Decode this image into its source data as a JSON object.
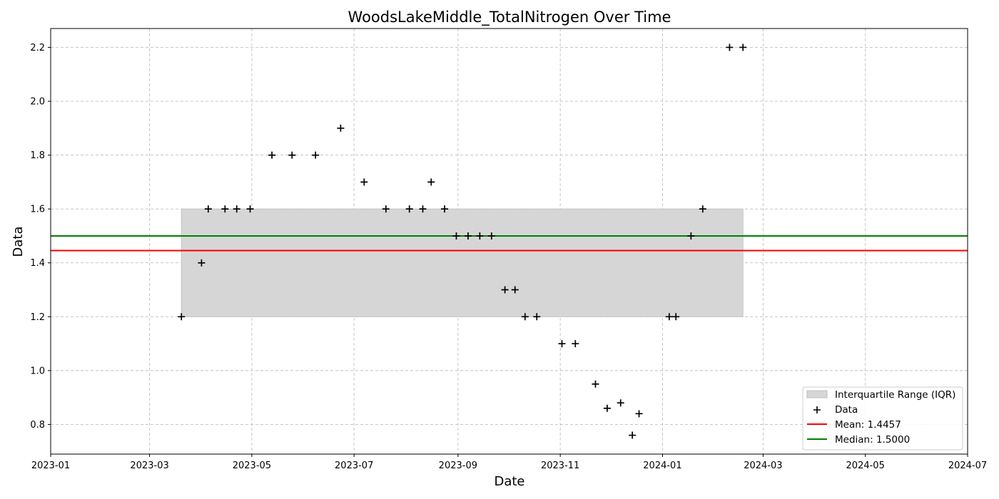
{
  "chart_data": {
    "type": "scatter",
    "title": "WoodsLakeMiddle_TotalNitrogen Over Time",
    "xlabel": "Date",
    "ylabel": "Data",
    "x_axis": "date",
    "xlim": [
      "2023-01-01",
      "2024-07-01"
    ],
    "ylim": [
      0.69,
      2.27
    ],
    "x_ticks": [
      "2023-01",
      "2023-03",
      "2023-05",
      "2023-07",
      "2023-09",
      "2023-11",
      "2024-01",
      "2024-03",
      "2024-05",
      "2024-07"
    ],
    "y_ticks": [
      0.8,
      1.0,
      1.2,
      1.4,
      1.6,
      1.8,
      2.0,
      2.2
    ],
    "grid": true,
    "legend_position": "bottom-right",
    "iqr": {
      "label": "Interquartile Range (IQR)",
      "q1": 1.2,
      "q3": 1.6,
      "x_start": "2023-03-20",
      "x_end": "2024-02-18",
      "color": "#d6d6d6"
    },
    "mean": {
      "label": "Mean: 1.4457",
      "value": 1.4457,
      "color": "#ff0000"
    },
    "median": {
      "label": "Median: 1.5000",
      "value": 1.5,
      "color": "#008000"
    },
    "series": [
      {
        "name": "Data",
        "marker": "plus",
        "color": "#000000",
        "points": [
          {
            "x": "2023-03-20",
            "y": 1.2
          },
          {
            "x": "2023-04-01",
            "y": 1.4
          },
          {
            "x": "2023-04-05",
            "y": 1.6
          },
          {
            "x": "2023-04-15",
            "y": 1.6
          },
          {
            "x": "2023-04-22",
            "y": 1.6
          },
          {
            "x": "2023-04-30",
            "y": 1.6
          },
          {
            "x": "2023-05-13",
            "y": 1.8
          },
          {
            "x": "2023-05-25",
            "y": 1.8
          },
          {
            "x": "2023-06-08",
            "y": 1.8
          },
          {
            "x": "2023-06-23",
            "y": 1.9
          },
          {
            "x": "2023-07-07",
            "y": 1.7
          },
          {
            "x": "2023-07-20",
            "y": 1.6
          },
          {
            "x": "2023-08-03",
            "y": 1.6
          },
          {
            "x": "2023-08-11",
            "y": 1.6
          },
          {
            "x": "2023-08-16",
            "y": 1.7
          },
          {
            "x": "2023-08-24",
            "y": 1.6
          },
          {
            "x": "2023-08-31",
            "y": 1.5
          },
          {
            "x": "2023-09-07",
            "y": 1.5
          },
          {
            "x": "2023-09-14",
            "y": 1.5
          },
          {
            "x": "2023-09-21",
            "y": 1.5
          },
          {
            "x": "2023-09-29",
            "y": 1.3
          },
          {
            "x": "2023-10-05",
            "y": 1.3
          },
          {
            "x": "2023-10-11",
            "y": 1.2
          },
          {
            "x": "2023-10-18",
            "y": 1.2
          },
          {
            "x": "2023-11-02",
            "y": 1.1
          },
          {
            "x": "2023-11-10",
            "y": 1.1
          },
          {
            "x": "2023-11-22",
            "y": 0.95
          },
          {
            "x": "2023-11-29",
            "y": 0.86
          },
          {
            "x": "2023-12-07",
            "y": 0.88
          },
          {
            "x": "2023-12-14",
            "y": 0.76
          },
          {
            "x": "2023-12-18",
            "y": 0.84
          },
          {
            "x": "2024-01-05",
            "y": 1.2
          },
          {
            "x": "2024-01-09",
            "y": 1.2
          },
          {
            "x": "2024-01-18",
            "y": 1.5
          },
          {
            "x": "2024-01-25",
            "y": 1.6
          },
          {
            "x": "2024-02-10",
            "y": 2.2
          },
          {
            "x": "2024-02-18",
            "y": 2.2
          }
        ]
      }
    ]
  }
}
